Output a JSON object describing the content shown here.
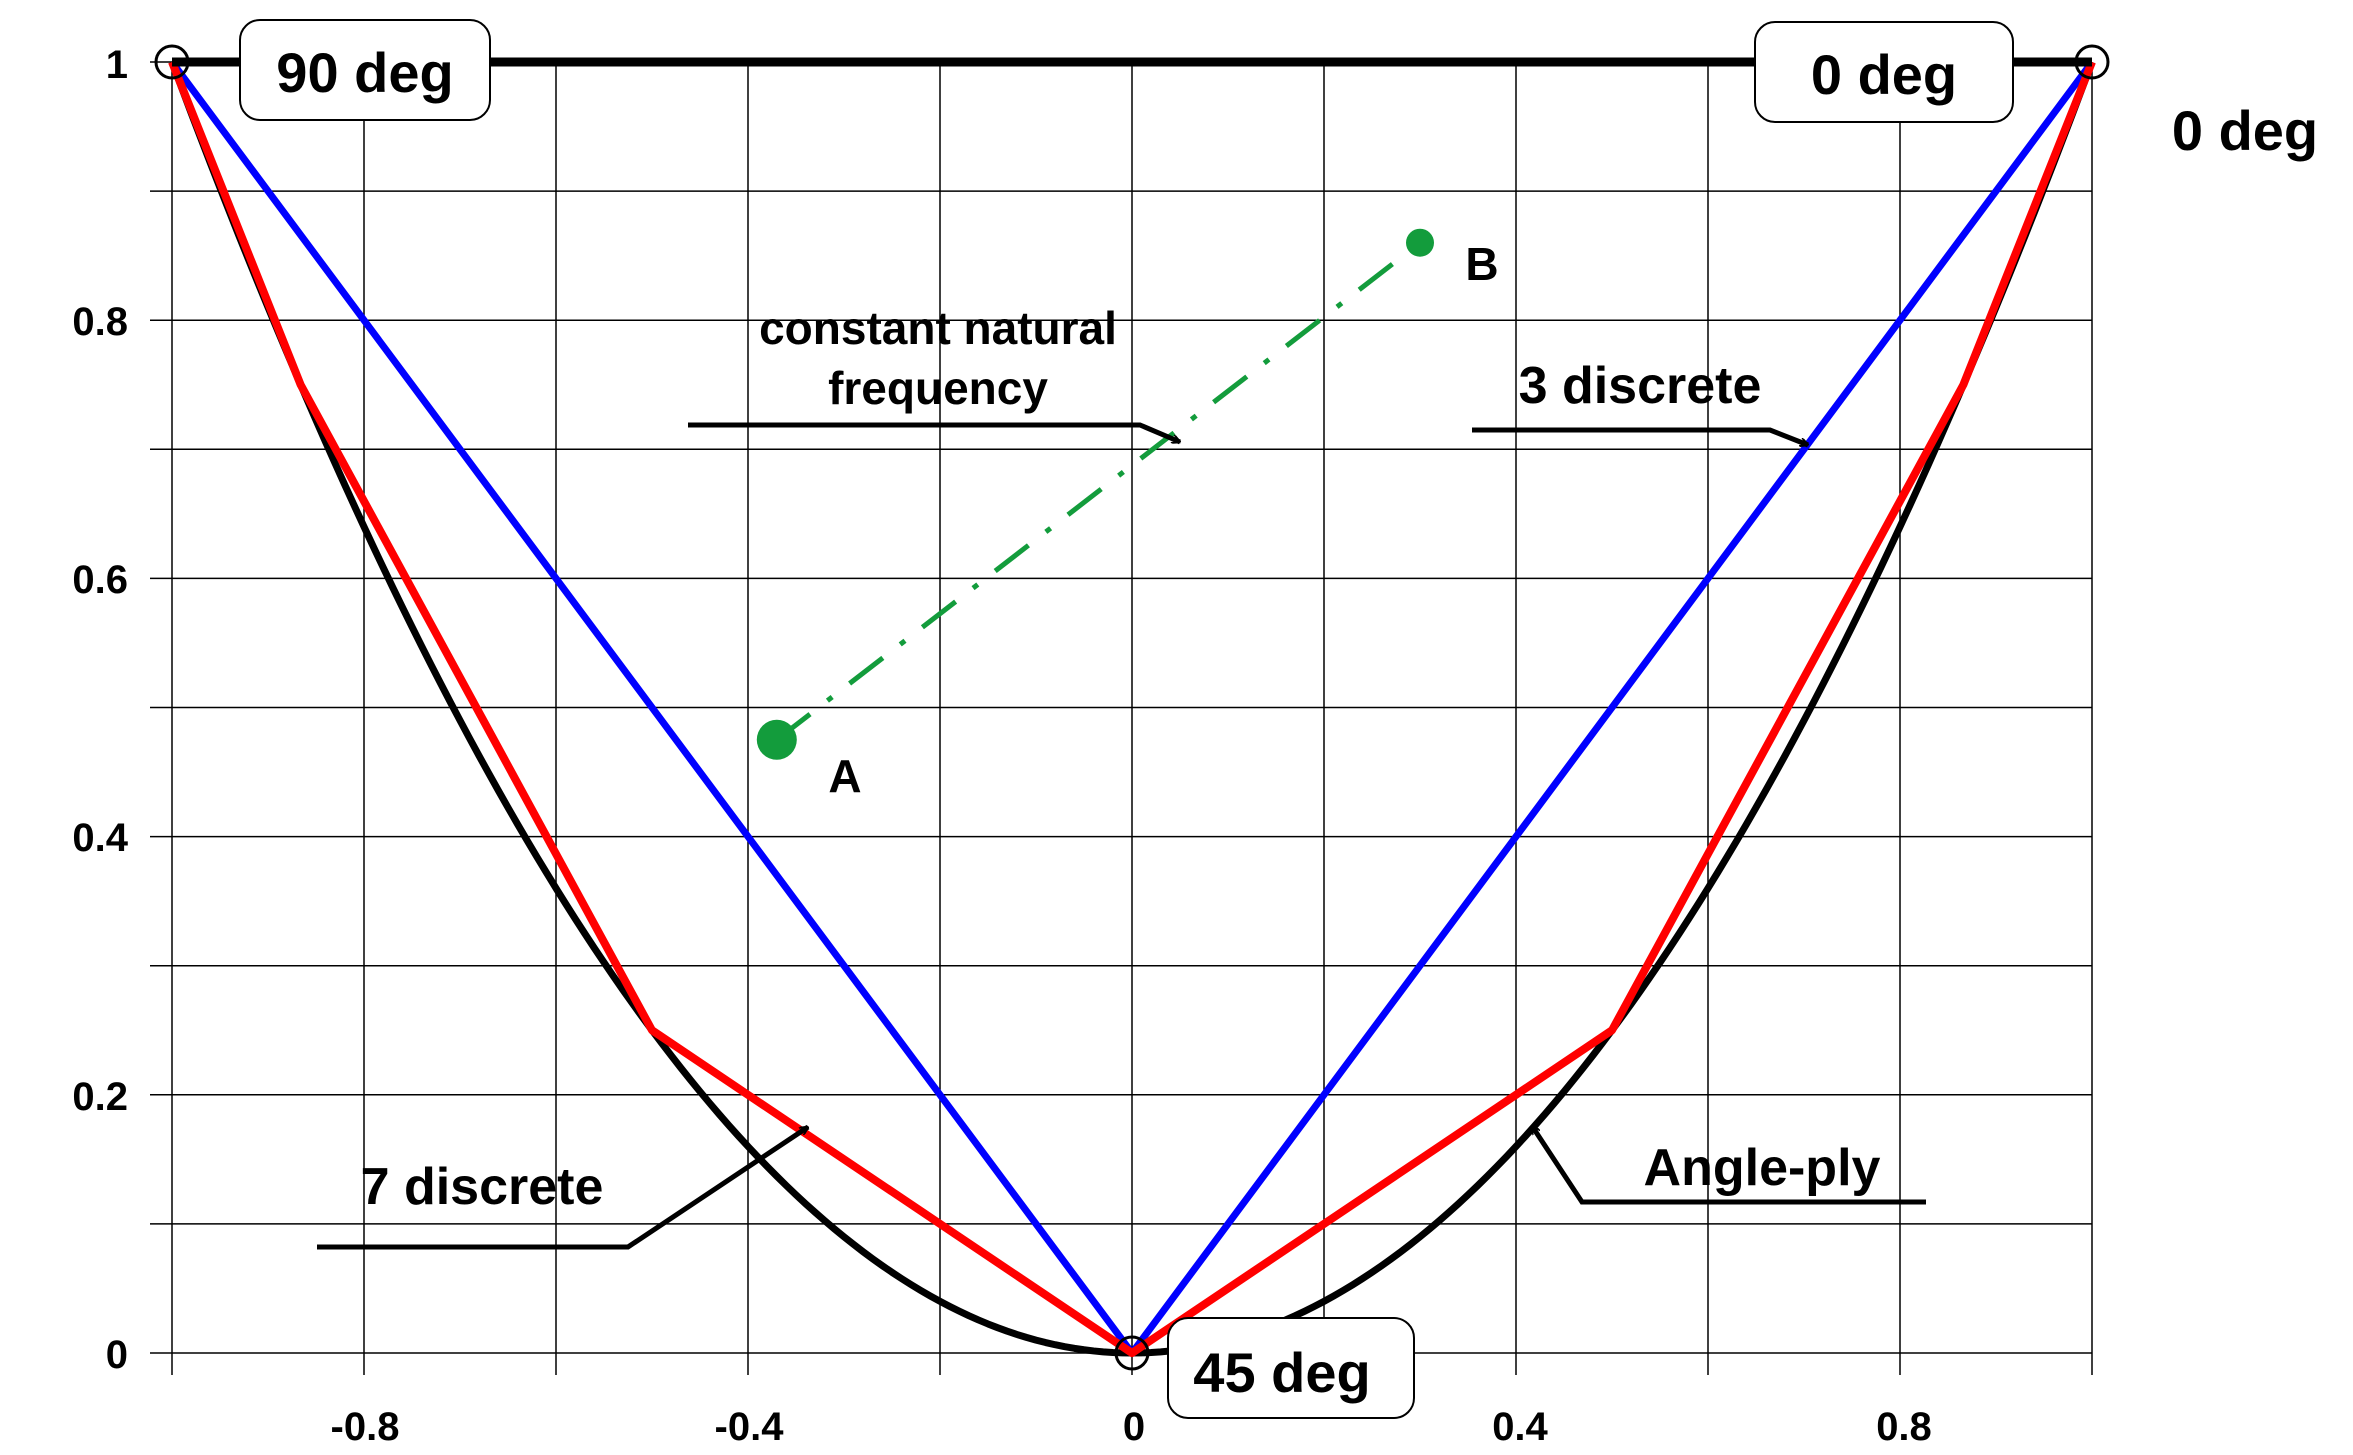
{
  "chart_data": {
    "type": "line",
    "title": "",
    "xlabel": "",
    "ylabel": "",
    "xlim": [
      -1,
      1
    ],
    "ylim": [
      0,
      1
    ],
    "grid": true,
    "x_ticks": [
      "-0.8",
      "-0.4",
      "0",
      "0.4",
      "0.8"
    ],
    "y_ticks": [
      "0",
      "0.2",
      "0.4",
      "0.6",
      "0.8",
      "1"
    ],
    "series": [
      {
        "name": "Angle-ply",
        "color": "#000000",
        "x": [
          -1,
          -0.9,
          -0.8,
          -0.7,
          -0.6,
          -0.5,
          -0.4,
          -0.3,
          -0.2,
          -0.1,
          0,
          0.1,
          0.2,
          0.3,
          0.4,
          0.5,
          0.6,
          0.7,
          0.8,
          0.9,
          1
        ],
        "y": [
          1,
          0.81,
          0.64,
          0.49,
          0.36,
          0.25,
          0.16,
          0.09,
          0.04,
          0.01,
          0,
          0.01,
          0.04,
          0.09,
          0.16,
          0.25,
          0.36,
          0.49,
          0.64,
          0.81,
          1
        ]
      },
      {
        "name": "3 discrete",
        "color": "#0000ff",
        "x": [
          -1,
          0,
          1
        ],
        "y": [
          1,
          0,
          1
        ]
      },
      {
        "name": "7 discrete",
        "color": "#ff0000",
        "x": [
          -1,
          -0.866,
          -0.5,
          0,
          0.5,
          0.866,
          1
        ],
        "y": [
          1,
          0.75,
          0.25,
          0,
          0.25,
          0.75,
          1
        ]
      },
      {
        "name": "top boundary",
        "color": "#000000",
        "x": [
          -1,
          1
        ],
        "y": [
          1,
          1
        ]
      }
    ],
    "corner_points": [
      {
        "x": -1,
        "y": 1
      },
      {
        "x": 1,
        "y": 1
      },
      {
        "x": 0,
        "y": 0
      }
    ],
    "points": [
      {
        "name": "A",
        "x": -0.37,
        "y": 0.475
      },
      {
        "name": "B",
        "x": 0.3,
        "y": 0.86
      }
    ],
    "connector": {
      "name": "constant natural frequency",
      "color": "#139c3c",
      "from": "A",
      "to": "B"
    },
    "annotations": {
      "label_90": "90 deg",
      "label_0_box": "0 deg",
      "label_0_outside": "0 deg",
      "label_45": "45 deg",
      "constant_line1": "constant natural",
      "constant_line2": "frequency",
      "three_discrete": "3 discrete",
      "seven_discrete": "7 discrete",
      "angle_ply": "Angle-ply"
    }
  }
}
